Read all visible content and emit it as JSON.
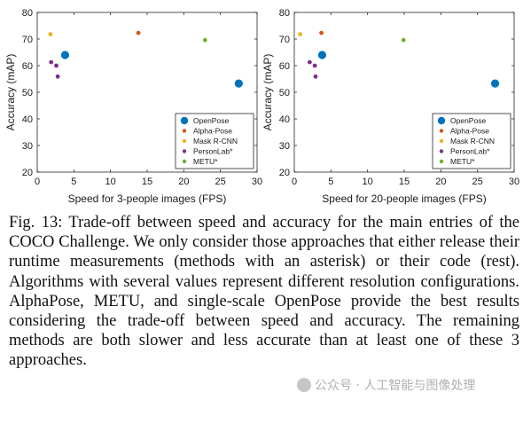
{
  "chart_data": [
    {
      "type": "scatter",
      "xlabel": "Speed for 3-people images (FPS)",
      "ylabel": "Accuracy (mAP)",
      "xlim": [
        0,
        30
      ],
      "ylim": [
        20,
        80
      ],
      "xticks": [
        0,
        5,
        10,
        15,
        20,
        25,
        30
      ],
      "yticks": [
        20,
        30,
        40,
        50,
        60,
        70,
        80
      ],
      "grid": false,
      "legend_position": "bottom-right",
      "series": [
        {
          "name": "OpenPose",
          "color": "#0072BD",
          "marker": "large",
          "points": [
            {
              "x": 3.8,
              "y": 64.0
            },
            {
              "x": 27.5,
              "y": 53.3
            }
          ]
        },
        {
          "name": "Alpha-Pose",
          "color": "#D95319",
          "marker": "small",
          "points": [
            {
              "x": 13.8,
              "y": 72.3
            }
          ]
        },
        {
          "name": "Mask R-CNN",
          "color": "#EDB120",
          "marker": "small",
          "points": [
            {
              "x": 1.8,
              "y": 71.8
            }
          ]
        },
        {
          "name": "PersonLab*",
          "color": "#7E2F8E",
          "marker": "small",
          "points": [
            {
              "x": 1.9,
              "y": 61.3
            },
            {
              "x": 2.6,
              "y": 60.0
            },
            {
              "x": 2.8,
              "y": 55.9
            }
          ]
        },
        {
          "name": "METU*",
          "color": "#77AC30",
          "marker": "small",
          "points": [
            {
              "x": 22.9,
              "y": 69.6
            }
          ]
        }
      ]
    },
    {
      "type": "scatter",
      "xlabel": "Speed for 20-people images (FPS)",
      "ylabel": "Accuracy (mAP)",
      "xlim": [
        0,
        30
      ],
      "ylim": [
        20,
        80
      ],
      "xticks": [
        0,
        5,
        10,
        15,
        20,
        25,
        30
      ],
      "yticks": [
        20,
        30,
        40,
        50,
        60,
        70,
        80
      ],
      "grid": false,
      "legend_position": "bottom-right",
      "series": [
        {
          "name": "OpenPose",
          "color": "#0072BD",
          "marker": "large",
          "points": [
            {
              "x": 3.8,
              "y": 64.0
            },
            {
              "x": 27.4,
              "y": 53.3
            }
          ]
        },
        {
          "name": "Alpha-Pose",
          "color": "#D95319",
          "marker": "small",
          "points": [
            {
              "x": 3.7,
              "y": 72.3
            }
          ]
        },
        {
          "name": "Mask R-CNN",
          "color": "#EDB120",
          "marker": "small",
          "points": [
            {
              "x": 0.8,
              "y": 71.8
            }
          ]
        },
        {
          "name": "PersonLab*",
          "color": "#7E2F8E",
          "marker": "small",
          "points": [
            {
              "x": 2.1,
              "y": 61.3
            },
            {
              "x": 2.8,
              "y": 60.0
            },
            {
              "x": 2.9,
              "y": 55.9
            }
          ]
        },
        {
          "name": "METU*",
          "color": "#77AC30",
          "marker": "small",
          "points": [
            {
              "x": 14.9,
              "y": 69.6
            }
          ]
        }
      ]
    }
  ],
  "caption": "Fig. 13: Trade-off between speed and accuracy for the main entries of the COCO Challenge. We only consider those approaches that either release their runtime measurements (methods with an asterisk) or their code (rest). Algorithms with several values represent different resolution configurations. AlphaPose, METU, and single-scale OpenPose provide the best results considering the trade-off between speed and accuracy. The remaining methods are both slower and less accurate than at least one of these 3 approaches.",
  "watermark": "公众号 · 人工智能与图像处理"
}
